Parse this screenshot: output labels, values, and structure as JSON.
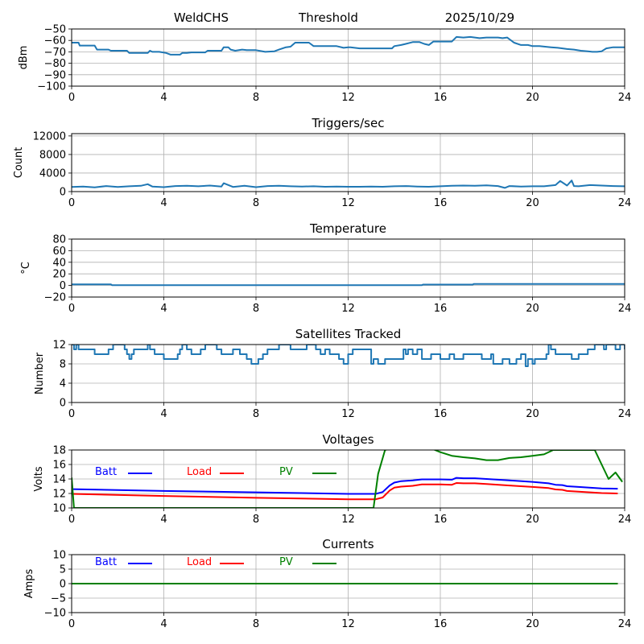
{
  "header": {
    "station": "WeldCHS",
    "mode": "Threshold",
    "date": "2025/10/29"
  },
  "chart_data": [
    {
      "id": "signal",
      "type": "line",
      "title": "",
      "xlabel": "",
      "ylabel": "dBm",
      "xlim": [
        0,
        24
      ],
      "ylim": [
        -100,
        -50
      ],
      "xticks": [
        "0",
        "4",
        "8",
        "12",
        "16",
        "20",
        "24"
      ],
      "yticks": [
        "−50",
        "−60",
        "−70",
        "−80",
        "−90",
        "−100"
      ],
      "grid": true,
      "series": [
        {
          "name": "signal",
          "color": "#1f77b4",
          "x": [
            0,
            0.3,
            0.35,
            1.0,
            1.1,
            1.6,
            1.7,
            2.4,
            2.5,
            3.3,
            3.4,
            3.5,
            3.8,
            4.1,
            4.3,
            4.7,
            4.8,
            5.0,
            5.2,
            5.8,
            5.9,
            6.5,
            6.6,
            6.8,
            6.9,
            7.1,
            7.4,
            7.6,
            8.0,
            8.4,
            8.8,
            9.0,
            9.3,
            9.5,
            9.7,
            10.3,
            10.5,
            11.0,
            11.5,
            11.8,
            12.0,
            12.1,
            12.5,
            13.0,
            13.5,
            13.9,
            14.0,
            14.3,
            14.5,
            14.8,
            15.1,
            15.3,
            15.5,
            15.7,
            16.0,
            16.5,
            16.7,
            17.0,
            17.3,
            17.7,
            18.0,
            18.5,
            18.7,
            18.9,
            19.2,
            19.5,
            19.8,
            20.0,
            20.3,
            20.8,
            21.1,
            21.5,
            21.8,
            22.1,
            22.4,
            22.6,
            22.8,
            23.0,
            23.2,
            23.5,
            24.0
          ],
          "y": [
            -62,
            -62,
            -64.5,
            -64.5,
            -68,
            -68,
            -69,
            -69,
            -71,
            -71,
            -69,
            -70,
            -70,
            -71,
            -72.5,
            -72.5,
            -71,
            -71,
            -70.5,
            -70.5,
            -69,
            -69,
            -66,
            -66,
            -68,
            -69,
            -68,
            -68.5,
            -68.5,
            -70,
            -69.5,
            -68,
            -66,
            -65.5,
            -62,
            -62,
            -65,
            -65,
            -65,
            -66.5,
            -66,
            -66,
            -67,
            -67,
            -67,
            -67,
            -65,
            -64,
            -63,
            -61.5,
            -61.5,
            -63,
            -64,
            -61,
            -61,
            -61,
            -57,
            -57.5,
            -57,
            -58,
            -57.5,
            -57.5,
            -58,
            -57.5,
            -62,
            -64,
            -64,
            -65,
            -65,
            -66,
            -66.5,
            -67.5,
            -68,
            -69,
            -69.5,
            -70,
            -70,
            -69.5,
            -67,
            -66,
            -66
          ]
        }
      ]
    },
    {
      "id": "triggers",
      "type": "line",
      "title": "Triggers/sec",
      "xlabel": "",
      "ylabel": "Count",
      "xlim": [
        0,
        24
      ],
      "ylim": [
        0,
        12500
      ],
      "xticks": [
        "0",
        "4",
        "8",
        "12",
        "16",
        "20",
        "24"
      ],
      "yticks": [
        "0",
        "4000",
        "8000",
        "12000"
      ],
      "grid": true,
      "series": [
        {
          "name": "triggers",
          "color": "#1f77b4",
          "x": [
            0,
            0.5,
            1.0,
            1.5,
            2.0,
            2.5,
            3.0,
            3.3,
            3.5,
            4.0,
            4.5,
            5.0,
            5.5,
            6.0,
            6.5,
            6.6,
            7.0,
            7.5,
            8.0,
            8.5,
            9.0,
            9.5,
            10.0,
            10.5,
            11.0,
            11.5,
            12.0,
            12.5,
            13.0,
            13.5,
            14.0,
            14.5,
            15.0,
            15.5,
            16.0,
            16.5,
            17.0,
            17.5,
            18.0,
            18.5,
            18.8,
            19.0,
            19.5,
            20.0,
            20.5,
            21.0,
            21.2,
            21.5,
            21.7,
            21.8,
            22.0,
            22.5,
            23.0,
            23.5,
            24.0
          ],
          "y": [
            1000,
            1100,
            900,
            1200,
            1000,
            1150,
            1250,
            1600,
            1100,
            950,
            1200,
            1250,
            1150,
            1300,
            1100,
            1800,
            1000,
            1250,
            950,
            1200,
            1250,
            1150,
            1100,
            1150,
            1050,
            1100,
            1050,
            1050,
            1100,
            1050,
            1150,
            1200,
            1100,
            1050,
            1150,
            1250,
            1300,
            1250,
            1350,
            1200,
            800,
            1200,
            1100,
            1150,
            1150,
            1400,
            2300,
            1300,
            2400,
            1200,
            1150,
            1400,
            1300,
            1200,
            1150
          ]
        }
      ]
    },
    {
      "id": "temperature",
      "type": "line",
      "title": "Temperature",
      "xlabel": "",
      "ylabel": "°C",
      "xlim": [
        0,
        24
      ],
      "ylim": [
        -20,
        80
      ],
      "xticks": [
        "0",
        "4",
        "8",
        "12",
        "16",
        "20",
        "24"
      ],
      "yticks": [
        "80",
        "60",
        "40",
        "20",
        "0",
        "−20"
      ],
      "grid": true,
      "series": [
        {
          "name": "temperature",
          "color": "#1f77b4",
          "x": [
            0,
            1.7,
            1.75,
            15.2,
            15.25,
            17.4,
            17.45,
            24
          ],
          "y": [
            2,
            2,
            0.5,
            0.5,
            1.5,
            1.5,
            2.5,
            2.5
          ]
        }
      ]
    },
    {
      "id": "satellites",
      "type": "line",
      "title": "Satellites Tracked",
      "xlabel": "",
      "ylabel": "Number",
      "xlim": [
        0,
        24
      ],
      "ylim": [
        0,
        12
      ],
      "xticks": [
        "0",
        "4",
        "8",
        "12",
        "16",
        "20",
        "24"
      ],
      "yticks": [
        "12",
        "8",
        "4",
        "0"
      ],
      "grid": true,
      "series": [
        {
          "name": "satellites",
          "color": "#1f77b4",
          "step": true,
          "x": [
            0,
            0.1,
            0.2,
            0.3,
            0.4,
            1.0,
            1.6,
            1.8,
            2.0,
            2.3,
            2.4,
            2.5,
            2.6,
            2.7,
            2.8,
            3.0,
            3.3,
            3.4,
            3.6,
            4.0,
            4.6,
            4.7,
            4.8,
            5.0,
            5.2,
            5.6,
            5.8,
            6.3,
            6.5,
            7.0,
            7.3,
            7.6,
            7.8,
            8.0,
            8.1,
            8.3,
            8.5,
            9.0,
            9.5,
            10.0,
            10.2,
            10.6,
            10.8,
            11.0,
            11.2,
            11.6,
            11.8,
            12.0,
            12.2,
            13.0,
            13.1,
            13.3,
            13.6,
            14.0,
            14.4,
            14.5,
            14.6,
            14.8,
            15.0,
            15.2,
            15.5,
            15.6,
            16.0,
            16.3,
            16.4,
            16.6,
            17.0,
            17.5,
            17.8,
            18.2,
            18.3,
            18.7,
            19.0,
            19.3,
            19.5,
            19.7,
            19.8,
            20.0,
            20.1,
            20.3,
            20.6,
            20.7,
            20.8,
            21.0,
            21.4,
            21.7,
            22.0,
            22.4,
            22.7,
            22.9,
            23.0,
            23.1,
            23.2,
            23.4,
            23.6,
            23.8,
            24.0
          ],
          "y": [
            12,
            11,
            12,
            11,
            11,
            10,
            11,
            12,
            12,
            11,
            10,
            9,
            10,
            11,
            11,
            11,
            12,
            11,
            10,
            9,
            10,
            11,
            12,
            11,
            10,
            11,
            12,
            11,
            10,
            11,
            10,
            9,
            8,
            8,
            9,
            10,
            11,
            12,
            11,
            11,
            12,
            11,
            10,
            11,
            10,
            9,
            8,
            10,
            11,
            8,
            9,
            8,
            9,
            9,
            11,
            10,
            11,
            10,
            11,
            9,
            9,
            10,
            9,
            9,
            10,
            9,
            10,
            10,
            9,
            10,
            8,
            9,
            8,
            9,
            10,
            7.5,
            9,
            8,
            9,
            9,
            10,
            12,
            11,
            10,
            10,
            9,
            10,
            11,
            12,
            12,
            12,
            11,
            12,
            12,
            11,
            12,
            11
          ]
        }
      ]
    },
    {
      "id": "voltages",
      "type": "line",
      "title": "Voltages",
      "xlabel": "",
      "ylabel": "Volts",
      "xlim": [
        0,
        24
      ],
      "ylim": [
        10,
        18
      ],
      "xticks": [
        "0",
        "4",
        "8",
        "12",
        "16",
        "20",
        "24"
      ],
      "yticks": [
        "18",
        "16",
        "14",
        "12",
        "10"
      ],
      "grid": true,
      "legend": "top-left-inline",
      "series": [
        {
          "name": "Batt",
          "color": "#0000ff",
          "x": [
            0,
            4,
            8,
            12,
            13.2,
            13.5,
            13.8,
            14.0,
            14.3,
            14.8,
            15.2,
            16.0,
            16.5,
            16.7,
            17.0,
            17.5,
            18.0,
            19.0,
            20.0,
            20.7,
            21.0,
            21.3,
            21.5,
            22.0,
            23.0,
            23.7
          ],
          "y": [
            12.6,
            12.35,
            12.15,
            11.95,
            11.95,
            12.2,
            13.1,
            13.5,
            13.7,
            13.8,
            13.95,
            13.95,
            13.9,
            14.15,
            14.1,
            14.1,
            14.0,
            13.8,
            13.6,
            13.4,
            13.2,
            13.15,
            13.0,
            12.9,
            12.7,
            12.65
          ]
        },
        {
          "name": "Load",
          "color": "#ff0000",
          "x": [
            0,
            4,
            8,
            12,
            13.2,
            13.5,
            13.8,
            14.0,
            14.3,
            14.8,
            15.2,
            16.0,
            16.5,
            16.7,
            17.0,
            17.5,
            18.0,
            19.0,
            20.0,
            20.7,
            21.0,
            21.3,
            21.5,
            22.0,
            23.0,
            23.7
          ],
          "y": [
            11.95,
            11.65,
            11.4,
            11.2,
            11.2,
            11.45,
            12.4,
            12.8,
            12.95,
            13.05,
            13.25,
            13.25,
            13.2,
            13.45,
            13.4,
            13.4,
            13.3,
            13.1,
            12.9,
            12.75,
            12.55,
            12.5,
            12.35,
            12.25,
            12.05,
            12.0
          ]
        },
        {
          "name": "PV",
          "color": "#008000",
          "x": [
            0,
            0.1,
            13.1,
            13.3,
            13.6,
            15.0,
            16.0,
            16.5,
            17.0,
            17.5,
            18.0,
            18.5,
            19.0,
            19.5,
            20.0,
            20.5,
            20.9,
            22.7,
            23.0,
            23.3,
            23.6,
            23.9
          ],
          "y": [
            14.2,
            10.0,
            10.0,
            14.7,
            18.0,
            19.0,
            17.7,
            17.2,
            17.0,
            16.85,
            16.6,
            16.6,
            16.9,
            17.0,
            17.2,
            17.4,
            18.0,
            18.0,
            16.0,
            14.0,
            14.9,
            13.6
          ]
        }
      ]
    },
    {
      "id": "currents",
      "type": "line",
      "title": "Currents",
      "xlabel": "",
      "ylabel": "Amps",
      "xlim": [
        0,
        24
      ],
      "ylim": [
        -10,
        10
      ],
      "xticks": [
        "0",
        "4",
        "8",
        "12",
        "16",
        "20",
        "24"
      ],
      "yticks": [
        "10",
        "5",
        "0",
        "−5",
        "−10"
      ],
      "grid": true,
      "legend": "top-left-inline",
      "series": [
        {
          "name": "Batt",
          "color": "#0000ff",
          "x": [
            0,
            23.7
          ],
          "y": [
            0,
            0
          ]
        },
        {
          "name": "Load",
          "color": "#ff0000",
          "x": [
            0,
            23.7
          ],
          "y": [
            0,
            0
          ]
        },
        {
          "name": "PV",
          "color": "#008000",
          "x": [
            0,
            23.7
          ],
          "y": [
            0,
            0
          ]
        }
      ]
    }
  ]
}
